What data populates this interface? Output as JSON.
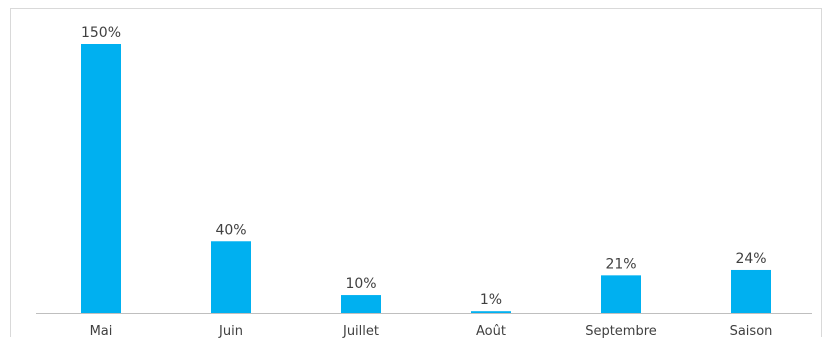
{
  "chart_data": {
    "type": "bar",
    "categories": [
      "Mai",
      "Juin",
      "Juillet",
      "Août",
      "Septembre",
      "Saison"
    ],
    "values": [
      150,
      40,
      10,
      1,
      21,
      24
    ],
    "data_labels": [
      "150%",
      "40%",
      "10%",
      "1%",
      "21%",
      "24%"
    ],
    "title": "",
    "xlabel": "",
    "ylabel": "",
    "ylim": [
      0,
      150
    ],
    "grid": false,
    "legend": "none",
    "bar_color": "#00b0f0",
    "axis_color": "#bfbfbf",
    "text_color": "#404040"
  }
}
